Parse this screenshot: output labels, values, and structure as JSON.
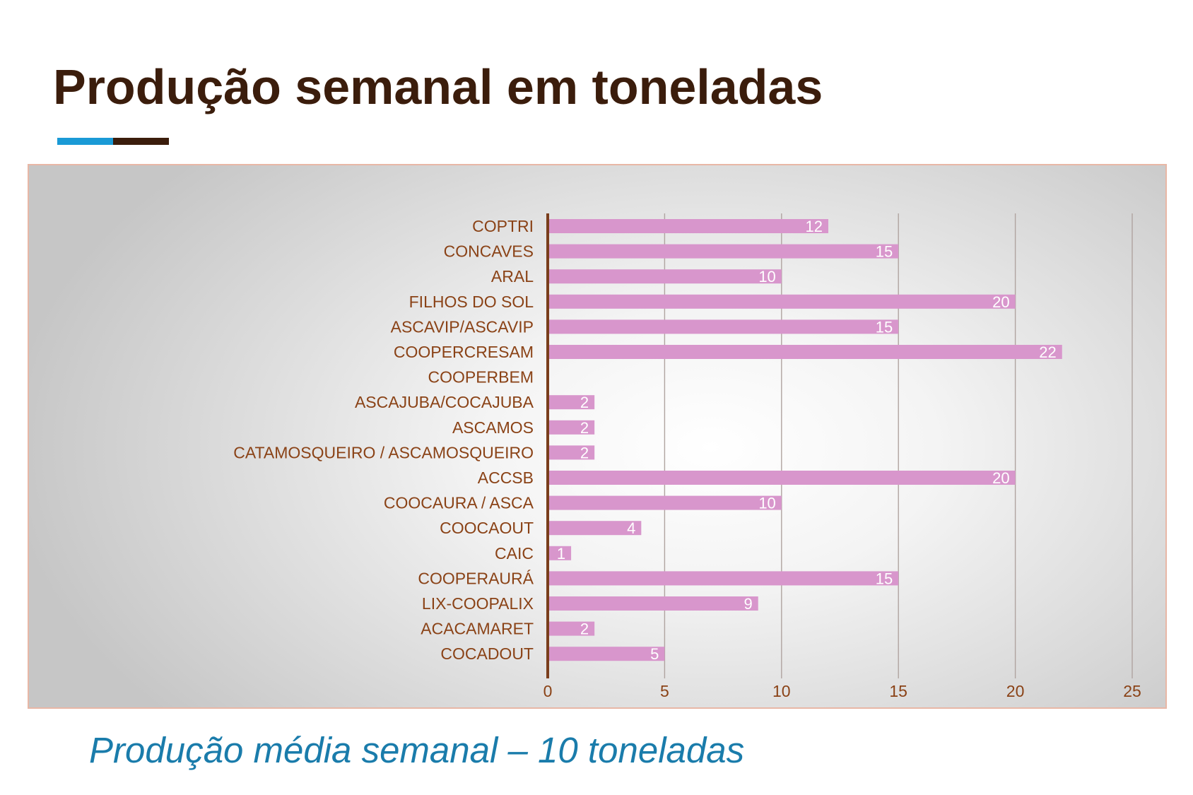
{
  "slide": {
    "title": "Produção semanal em toneladas",
    "summary": "Produção média semanal – 10 toneladas"
  },
  "colors": {
    "title": "#3b1d0c",
    "accent_blue": "#1a9ad6",
    "accent_brown": "#3b1d0c",
    "bar": "#d896cc",
    "category_label": "#8a4216",
    "axis_line": "#7a3e1c",
    "gridline": "#b0a4a0",
    "summary": "#1a7cab",
    "panel_border": "#e8b7a6"
  },
  "chart_data": {
    "type": "bar",
    "orientation": "horizontal",
    "categories": [
      "COPTRI",
      "CONCAVES",
      "ARAL",
      "FILHOS DO SOL",
      "ASCAVIP/ASCAVIP",
      "COOPERCRESAM",
      "COOPERBEM",
      "ASCAJUBA/COCAJUBA",
      "ASCAMOS",
      "CATAMOSQUEIRO / ASCAMOSQUEIRO",
      "ACCSB",
      "COOCAURA / ASCA",
      "COOCAOUT",
      "CAIC",
      "COOPERAURÁ",
      "LIX-COOPALIX",
      "ACACAMARET",
      "COCADOUT"
    ],
    "values": [
      12,
      15,
      10,
      20,
      15,
      22,
      null,
      2,
      2,
      2,
      20,
      10,
      4,
      1,
      15,
      9,
      2,
      5
    ],
    "data_labels": [
      "12",
      "15",
      "10",
      "20",
      "15",
      "22",
      "",
      "2",
      "2",
      "2",
      "20",
      "10",
      "4",
      "1",
      "15",
      "9",
      "2",
      "5"
    ],
    "xlim": [
      0,
      25
    ],
    "xticks": [
      0,
      5,
      10,
      15,
      20,
      25
    ],
    "xtick_labels": [
      "0",
      "5",
      "10",
      "15",
      "20",
      "25"
    ],
    "grid": true,
    "legend": "none",
    "title": "",
    "xlabel": "",
    "ylabel": ""
  }
}
